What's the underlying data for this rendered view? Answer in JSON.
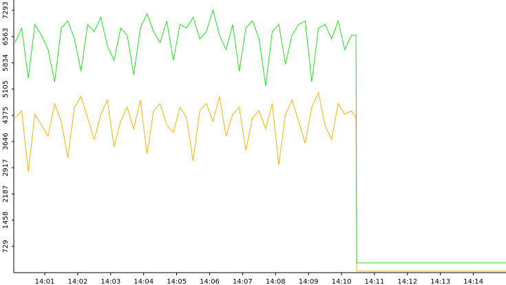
{
  "chart_data": {
    "type": "line",
    "x": [
      0.1,
      0.3,
      0.5,
      0.7,
      0.9,
      1.1,
      1.3,
      1.5,
      1.7,
      1.9,
      2.1,
      2.3,
      2.5,
      2.7,
      2.9,
      3.1,
      3.3,
      3.5,
      3.7,
      3.9,
      4.1,
      4.3,
      4.5,
      4.7,
      4.9,
      5.1,
      5.3,
      5.5,
      5.7,
      5.9,
      6.1,
      6.3,
      6.5,
      6.7,
      6.9,
      7.1,
      7.3,
      7.5,
      7.7,
      7.9,
      8.1,
      8.3,
      8.5,
      8.7,
      8.9,
      9.1,
      9.3,
      9.5,
      9.7,
      9.9,
      10.1,
      10.3,
      10.44,
      10.46,
      14.99
    ],
    "series": [
      {
        "color": "#22dd22",
        "values": [
          6400,
          6800,
          5400,
          6900,
          6600,
          6200,
          5300,
          6800,
          7000,
          6500,
          5600,
          6900,
          6700,
          7100,
          6300,
          5900,
          6800,
          6600,
          5500,
          6800,
          7200,
          6700,
          6400,
          7000,
          5900,
          6900,
          6800,
          7100,
          6500,
          6700,
          7300,
          6600,
          6200,
          6900,
          5600,
          6800,
          7000,
          6500,
          5200,
          6700,
          6900,
          5800,
          6600,
          6900,
          7000,
          5300,
          6800,
          6900,
          6500,
          7000,
          6200,
          6600,
          6600,
          270,
          270
        ]
      },
      {
        "color": "#f0b400",
        "values": [
          4300,
          4500,
          2800,
          4400,
          4100,
          3800,
          4700,
          4200,
          3200,
          4600,
          4900,
          4300,
          3700,
          4400,
          4800,
          3500,
          4200,
          4600,
          4000,
          4800,
          3300,
          4500,
          4700,
          4100,
          3900,
          4600,
          4300,
          3100,
          4500,
          4700,
          4200,
          4900,
          3800,
          4400,
          4600,
          3400,
          4300,
          4500,
          4000,
          4700,
          3000,
          4400,
          4800,
          4200,
          3600,
          4600,
          5000,
          4100,
          3700,
          4700,
          4400,
          4500,
          4300,
          40,
          40
        ]
      }
    ],
    "xlim": [
      0.06,
      14.99
    ],
    "xticks": [
      {
        "value": 1,
        "label": "14:01"
      },
      {
        "value": 2,
        "label": "14:02"
      },
      {
        "value": 3,
        "label": "14:03"
      },
      {
        "value": 4,
        "label": "14:04"
      },
      {
        "value": 5,
        "label": "14:05"
      },
      {
        "value": 6,
        "label": "14:06"
      },
      {
        "value": 7,
        "label": "14:07"
      },
      {
        "value": 8,
        "label": "14:08"
      },
      {
        "value": 9,
        "label": "14:09"
      },
      {
        "value": 10,
        "label": "14:10"
      },
      {
        "value": 11,
        "label": "14:11"
      },
      {
        "value": 12,
        "label": "14:12"
      },
      {
        "value": 13,
        "label": "14:13"
      },
      {
        "value": 14,
        "label": "14:14"
      }
    ],
    "ylim": [
      0,
      7580
    ],
    "yticks": [
      729,
      1458,
      2187,
      2917,
      3646,
      4375,
      5105,
      5834,
      6563,
      7293
    ],
    "grid": false
  }
}
